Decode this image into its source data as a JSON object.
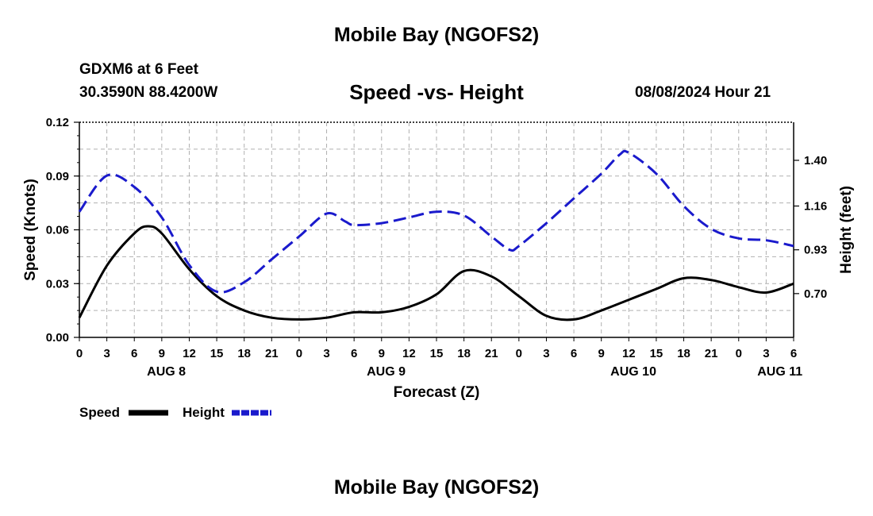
{
  "header": {
    "title": "Mobile Bay (NGOFS2)",
    "station": "GDXM6 at 6 Feet",
    "coords": "30.3590N  88.4200W",
    "subtitle": "Speed -vs- Height",
    "datetime": "08/08/2024 Hour 21"
  },
  "footer": {
    "title": "Mobile Bay (NGOFS2)"
  },
  "chart_data": {
    "type": "line",
    "title": "Speed -vs- Height",
    "xlabel": "Forecast (Z)",
    "ylabel": "Speed (Knots)",
    "y2label": "Height (feet)",
    "x_unit": "hours from Aug 8 00Z",
    "xlim": [
      0,
      78
    ],
    "ylim": [
      0,
      0.12
    ],
    "y2lim": [
      0.47,
      1.6
    ],
    "x_ticks": [
      0,
      3,
      6,
      9,
      12,
      15,
      18,
      21,
      24,
      27,
      30,
      33,
      36,
      39,
      42,
      45,
      48,
      51,
      54,
      57,
      60,
      63,
      66,
      69,
      72,
      75,
      78
    ],
    "x_tick_labels": [
      "0",
      "3",
      "6",
      "9",
      "12",
      "15",
      "18",
      "21",
      "0",
      "3",
      "6",
      "9",
      "12",
      "15",
      "18",
      "21",
      "0",
      "3",
      "6",
      "9",
      "12",
      "15",
      "18",
      "21",
      "0",
      "3",
      "6"
    ],
    "y_ticks": [
      0,
      0.03,
      0.06,
      0.09,
      0.12
    ],
    "y_tick_labels": [
      "0.00",
      "0.03",
      "0.06",
      "0.09",
      "0.12"
    ],
    "y2_ticks": [
      0.7,
      0.93,
      1.16,
      1.4
    ],
    "y2_tick_labels": [
      "0.70",
      "0.93",
      "1.16",
      "1.40"
    ],
    "day_labels": [
      {
        "x": 9.5,
        "label": "AUG 8"
      },
      {
        "x": 33.5,
        "label": "AUG 9"
      },
      {
        "x": 60.5,
        "label": "AUG 10"
      },
      {
        "x": 76.5,
        "label": "AUG 11"
      }
    ],
    "grid": true,
    "series": [
      {
        "name": "Speed",
        "axis": "left",
        "color": "#000000",
        "style": "solid",
        "x": [
          0,
          3,
          6,
          7.5,
          9,
          12,
          15,
          18,
          21,
          24,
          27,
          30,
          33,
          36,
          39,
          42,
          45,
          48,
          51,
          54,
          57,
          60,
          63,
          66,
          69,
          72,
          75,
          78
        ],
        "values": [
          0.011,
          0.04,
          0.058,
          0.062,
          0.058,
          0.038,
          0.023,
          0.015,
          0.011,
          0.01,
          0.011,
          0.014,
          0.014,
          0.017,
          0.024,
          0.037,
          0.034,
          0.023,
          0.012,
          0.01,
          0.015,
          0.021,
          0.027,
          0.033,
          0.032,
          0.028,
          0.025,
          0.03
        ]
      },
      {
        "name": "Height",
        "axis": "right",
        "color": "#1a1acc",
        "style": "dashed",
        "x": [
          0,
          3,
          6,
          9,
          12,
          15,
          18,
          21,
          24,
          27,
          29,
          30,
          33,
          36,
          39,
          42,
          45,
          47,
          48,
          51,
          54,
          57,
          59,
          60,
          63,
          66,
          69,
          72,
          75,
          78
        ],
        "values": [
          1.13,
          1.32,
          1.26,
          1.1,
          0.85,
          0.71,
          0.76,
          0.88,
          1.0,
          1.12,
          1.08,
          1.06,
          1.07,
          1.1,
          1.13,
          1.11,
          1.0,
          0.93,
          0.95,
          1.07,
          1.2,
          1.33,
          1.43,
          1.44,
          1.33,
          1.16,
          1.04,
          0.99,
          0.98,
          0.95
        ]
      }
    ],
    "legend": {
      "placement": "bottom-left",
      "entries": [
        "Speed",
        "Height"
      ]
    }
  }
}
